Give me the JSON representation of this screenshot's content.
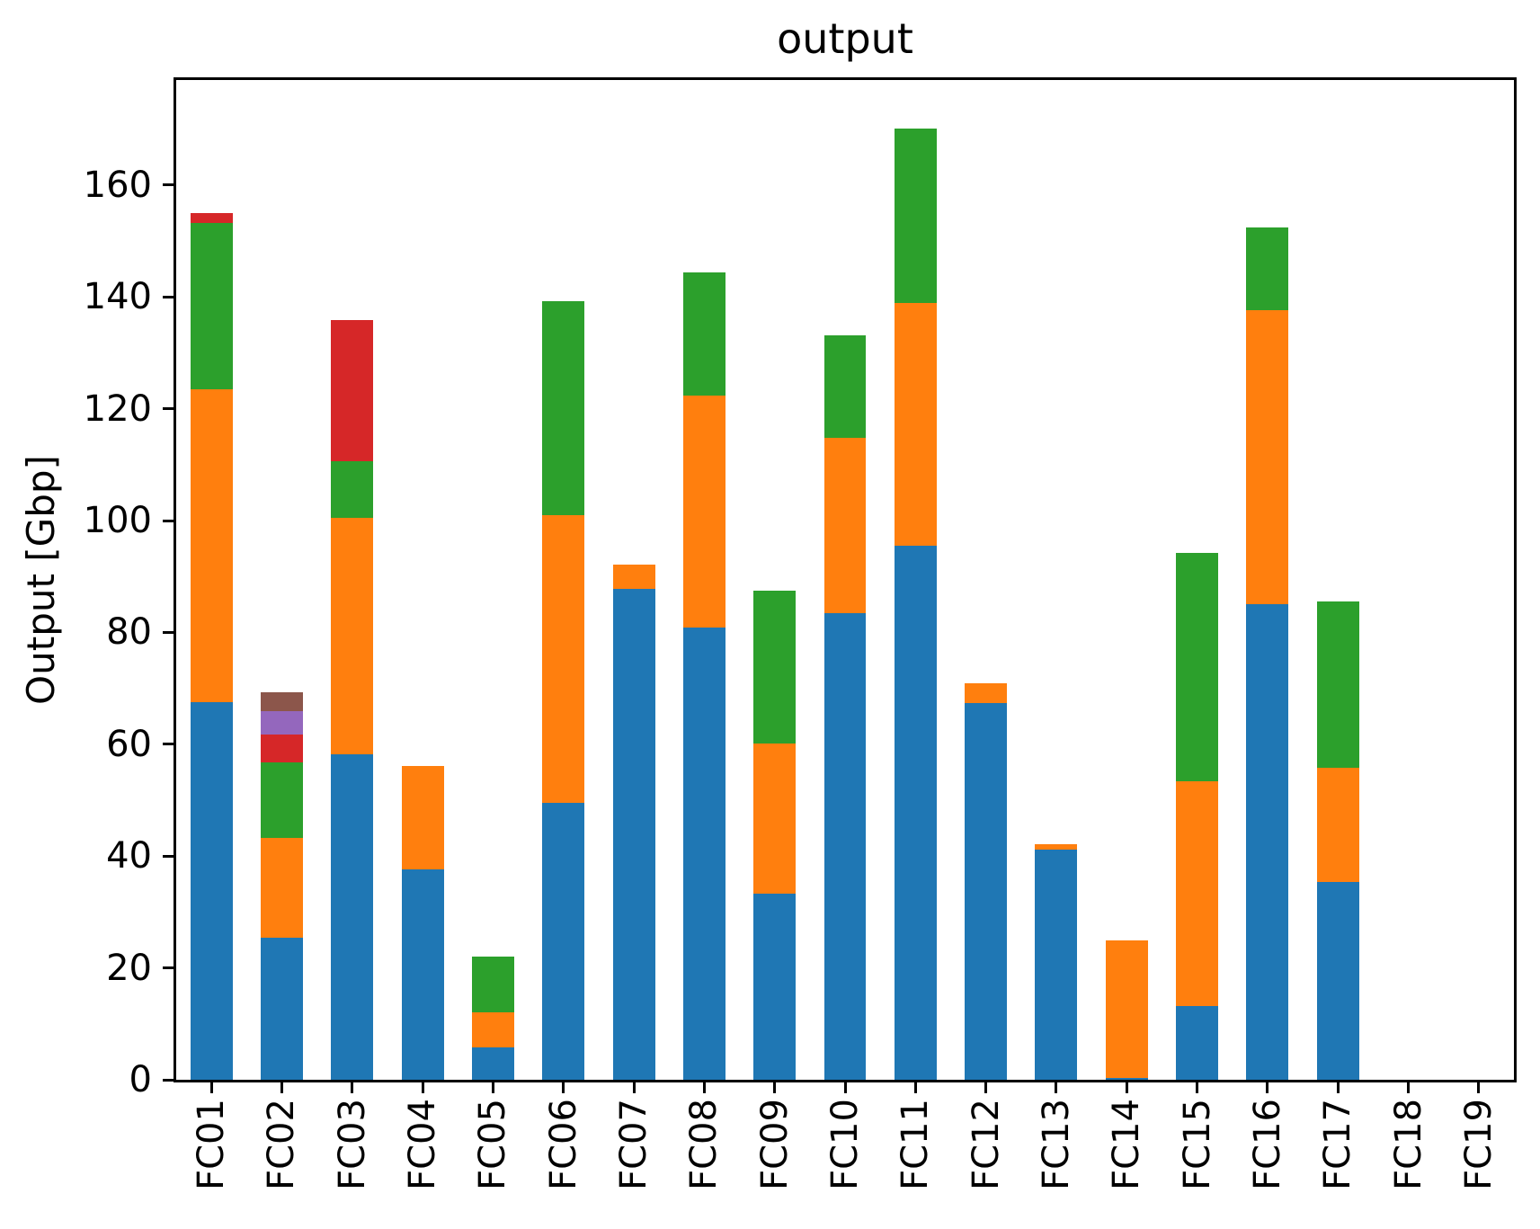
{
  "title": "output",
  "y_axis": {
    "label": "Output [Gbp]",
    "ticks": [
      0,
      20,
      40,
      60,
      80,
      100,
      120,
      140,
      160
    ]
  },
  "chart_data": {
    "type": "bar",
    "stacked": true,
    "title": "output",
    "xlabel": "",
    "ylabel": "Output [Gbp]",
    "ylim": [
      0,
      178.8
    ],
    "grid": false,
    "legend": "none",
    "bar_width_fraction": 0.6,
    "categories": [
      "FC01",
      "FC02",
      "FC03",
      "FC04",
      "FC05",
      "FC06",
      "FC07",
      "FC08",
      "FC09",
      "FC10",
      "FC11",
      "FC12",
      "FC13",
      "FC14",
      "FC15",
      "FC16",
      "FC17",
      "FC18",
      "FC19"
    ],
    "series": [
      {
        "name": "blue",
        "color": "#1f77b4",
        "values": [
          67.5,
          25.4,
          58.2,
          37.7,
          5.8,
          49.5,
          87.8,
          80.8,
          33.3,
          83.4,
          95.5,
          67.3,
          41.2,
          0.4,
          13.2,
          85.0,
          35.4,
          0,
          0
        ]
      },
      {
        "name": "orange",
        "color": "#ff7f0e",
        "values": [
          56.0,
          17.9,
          42.3,
          18.4,
          6.3,
          51.4,
          4.4,
          41.5,
          26.8,
          31.4,
          43.4,
          3.6,
          0.9,
          24.6,
          40.2,
          52.7,
          20.4,
          0,
          0
        ]
      },
      {
        "name": "green",
        "color": "#2ca02c",
        "values": [
          29.8,
          13.4,
          10.1,
          0,
          10.0,
          38.4,
          0,
          22.1,
          27.4,
          18.3,
          31.2,
          0,
          0,
          0,
          40.9,
          14.7,
          29.7,
          0,
          0
        ]
      },
      {
        "name": "red",
        "color": "#d62728",
        "values": [
          1.7,
          5.0,
          25.2,
          0,
          0,
          0,
          0,
          0,
          0,
          0,
          0,
          0,
          0,
          0,
          0,
          0,
          0,
          0,
          0
        ]
      },
      {
        "name": "purple",
        "color": "#9467bd",
        "values": [
          0,
          4.3,
          0,
          0,
          0,
          0,
          0,
          0,
          0,
          0,
          0,
          0,
          0,
          0,
          0,
          0,
          0,
          0,
          0
        ]
      },
      {
        "name": "brown",
        "color": "#8c564b",
        "values": [
          0,
          3.3,
          0,
          0,
          0,
          0,
          0,
          0,
          0,
          0,
          0,
          0,
          0,
          0,
          0,
          0,
          0,
          0,
          0
        ]
      }
    ]
  }
}
